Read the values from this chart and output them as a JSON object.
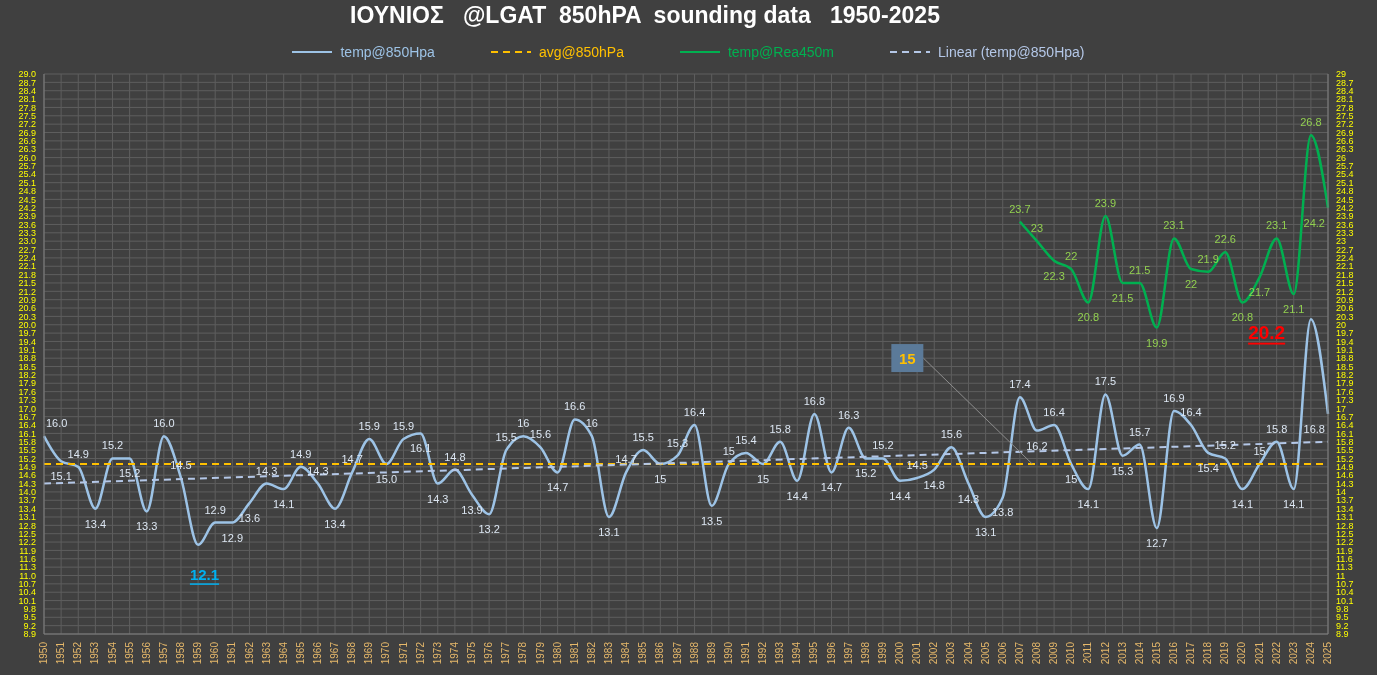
{
  "chart_data": {
    "type": "line",
    "title": "ΙΟΥΝΙΟΣ   @LGAT  850hPA  sounding data   1950-2025",
    "categories": [
      "1950",
      "1951",
      "1952",
      "1953",
      "1954",
      "1955",
      "1956",
      "1957",
      "1958",
      "1959",
      "1960",
      "1961",
      "1962",
      "1963",
      "1964",
      "1965",
      "1966",
      "1967",
      "1968",
      "1969",
      "1970",
      "1971",
      "1972",
      "1973",
      "1974",
      "1975",
      "1976",
      "1977",
      "1978",
      "1979",
      "1980",
      "1981",
      "1982",
      "1983",
      "1984",
      "1985",
      "1986",
      "1987",
      "1988",
      "1989",
      "1990",
      "1991",
      "1992",
      "1993",
      "1994",
      "1995",
      "1996",
      "1997",
      "1998",
      "1999",
      "2000",
      "2001",
      "2002",
      "2003",
      "2004",
      "2005",
      "2006",
      "2007",
      "2008",
      "2009",
      "2010",
      "2011",
      "2012",
      "2013",
      "2014",
      "2015",
      "2016",
      "2017",
      "2018",
      "2019",
      "2020",
      "2021",
      "2022",
      "2023",
      "2024",
      "2025"
    ],
    "series": [
      {
        "name": "temp@850Hpa",
        "color": "#9dc3e6",
        "line_style": "solid",
        "values": [
          16.0,
          15.1,
          14.9,
          13.4,
          15.2,
          15.2,
          13.3,
          16.0,
          14.5,
          12.1,
          12.9,
          12.9,
          13.6,
          14.3,
          14.1,
          14.9,
          14.3,
          13.4,
          14.7,
          15.9,
          15.0,
          15.9,
          16.1,
          14.3,
          14.8,
          13.9,
          13.2,
          15.5,
          16,
          15.6,
          14.7,
          16.6,
          16,
          13.1,
          14.7,
          15.5,
          15,
          15.3,
          16.4,
          13.5,
          15,
          15.4,
          15,
          15.8,
          14.4,
          16.8,
          14.7,
          16.3,
          15.2,
          15.2,
          14.4,
          14.5,
          14.8,
          15.6,
          14.3,
          13.1,
          13.8,
          17.4,
          16.2,
          16.4,
          15,
          14.1,
          17.5,
          15.3,
          15.7,
          12.7,
          16.9,
          16.4,
          15.4,
          15.2,
          14.1,
          15,
          15.8,
          14.1,
          20.2,
          16.8
        ],
        "value_labels": [
          "16.0",
          "15.1",
          "14.9",
          "13.4",
          "15.2",
          "15.2",
          "13.3",
          "16.0",
          "14.5",
          null,
          "12.9",
          "12.9",
          "13.6",
          "14.3",
          "14.1",
          "14.9",
          "14.3",
          "13.4",
          "14.7",
          "15.9",
          "15.0",
          "15.9",
          "16.1",
          "14.3",
          "14.8",
          "13.9",
          "13.2",
          "15.5",
          "16",
          "15.6",
          "14.7",
          "16.6",
          "16",
          "13.1",
          "14.7",
          "15.5",
          "15",
          "15.3",
          "16.4",
          "13.5",
          "15",
          "15.4",
          "15",
          "15.8",
          "14.4",
          "16.8",
          "14.7",
          "16.3",
          "15.2",
          "15.2",
          "14.4",
          "14.5",
          "14.8",
          "15.6",
          "14.3",
          "13.1",
          "13.8",
          "17.4",
          "16.2",
          "16.4",
          "15",
          "14.1",
          "17.5",
          "15.3",
          "15.7",
          "12.7",
          "16.9",
          "16.4",
          "15.4",
          "15.2",
          "14.1",
          "15",
          "15.8",
          "14.1",
          null,
          "16.8"
        ]
      },
      {
        "name": "avg@850hPa",
        "color": "#ffc000",
        "line_style": "dashed",
        "values": [
          15,
          15,
          15,
          15,
          15,
          15,
          15,
          15,
          15,
          15,
          15,
          15,
          15,
          15,
          15,
          15,
          15,
          15,
          15,
          15,
          15,
          15,
          15,
          15,
          15,
          15,
          15,
          15,
          15,
          15,
          15,
          15,
          15,
          15,
          15,
          15,
          15,
          15,
          15,
          15,
          15,
          15,
          15,
          15,
          15,
          15,
          15,
          15,
          15,
          15,
          15,
          15,
          15,
          15,
          15,
          15,
          15,
          15,
          15,
          15,
          15,
          15,
          15,
          15,
          15,
          15,
          15,
          15,
          15,
          15,
          15,
          15,
          15,
          15,
          15,
          15
        ]
      },
      {
        "name": "temp@Rea450m",
        "color": "#00b050",
        "line_style": "solid",
        "values": [
          null,
          null,
          null,
          null,
          null,
          null,
          null,
          null,
          null,
          null,
          null,
          null,
          null,
          null,
          null,
          null,
          null,
          null,
          null,
          null,
          null,
          null,
          null,
          null,
          null,
          null,
          null,
          null,
          null,
          null,
          null,
          null,
          null,
          null,
          null,
          null,
          null,
          null,
          null,
          null,
          null,
          null,
          null,
          null,
          null,
          null,
          null,
          null,
          null,
          null,
          null,
          null,
          null,
          null,
          null,
          null,
          null,
          23.7,
          23,
          22.3,
          22,
          20.8,
          23.9,
          21.5,
          21.5,
          19.9,
          23.1,
          22,
          21.9,
          22.6,
          20.8,
          21.7,
          23.1,
          21.1,
          26.8,
          24.2
        ],
        "value_labels": [
          null,
          null,
          null,
          null,
          null,
          null,
          null,
          null,
          null,
          null,
          null,
          null,
          null,
          null,
          null,
          null,
          null,
          null,
          null,
          null,
          null,
          null,
          null,
          null,
          null,
          null,
          null,
          null,
          null,
          null,
          null,
          null,
          null,
          null,
          null,
          null,
          null,
          null,
          null,
          null,
          null,
          null,
          null,
          null,
          null,
          null,
          null,
          null,
          null,
          null,
          null,
          null,
          null,
          null,
          null,
          null,
          null,
          "23.7",
          "23",
          "22.3",
          "22",
          "20.8",
          "23.9",
          "21.5",
          "21.5",
          "19.9",
          "23.1",
          "22",
          "21.9",
          "22.6",
          "20.8",
          "21.7",
          "23.1",
          "21.1",
          "26.8",
          "24.2"
        ]
      },
      {
        "name": "Linear (temp@850Hpa)",
        "color": "#b4c7e7",
        "line_style": "dashed",
        "values": [
          14.3,
          null,
          null,
          null,
          null,
          null,
          null,
          null,
          null,
          null,
          null,
          null,
          null,
          null,
          null,
          null,
          null,
          null,
          null,
          null,
          null,
          null,
          null,
          null,
          null,
          null,
          null,
          null,
          null,
          null,
          null,
          null,
          null,
          null,
          null,
          null,
          null,
          null,
          null,
          null,
          null,
          null,
          null,
          null,
          null,
          null,
          null,
          null,
          null,
          null,
          null,
          null,
          null,
          null,
          null,
          null,
          null,
          null,
          null,
          null,
          null,
          null,
          null,
          null,
          null,
          null,
          null,
          null,
          null,
          null,
          null,
          null,
          null,
          null,
          null,
          15.8
        ]
      }
    ],
    "annotations": [
      {
        "text": "12.1",
        "x": "1959",
        "y": 12.1
      },
      {
        "text": "20.2",
        "x": "2024",
        "y": 20.2
      },
      {
        "text": "15",
        "x": "2008",
        "y": 15
      }
    ],
    "ylim": [
      8.9,
      29
    ],
    "yticks": [
      8.9,
      9.2,
      9.5,
      9.8,
      10.1,
      10.4,
      10.7,
      {
        "value": 11,
        "label": "11.0"
      },
      11.3,
      11.6,
      11.9,
      12.2,
      12.5,
      12.8,
      13.1,
      13.4,
      13.7,
      {
        "value": 14,
        "label": "14.0"
      },
      14.3,
      14.6,
      14.9,
      15.2,
      15.5,
      15.8,
      16.1,
      16.4,
      16.7,
      {
        "value": 17,
        "label": "17.0"
      },
      17.3,
      17.6,
      17.9,
      18.2,
      18.5,
      18.8,
      19.1,
      19.4,
      19.7,
      {
        "value": 20,
        "label": "20.0"
      },
      20.3,
      20.6,
      20.9,
      21.2,
      21.5,
      21.8,
      22.1,
      22.4,
      22.7,
      {
        "value": 23,
        "label": "23.0"
      },
      23.3,
      23.6,
      23.9,
      24.2,
      24.5,
      24.8,
      25.1,
      25.4,
      25.7,
      {
        "value": 26,
        "label": "26.0"
      },
      26.3,
      26.6,
      26.9,
      27.2,
      27.5,
      27.8,
      28.1,
      28.4,
      28.7,
      {
        "value": 29,
        "label": "29.0"
      }
    ],
    "y2lim": [
      8.9,
      29
    ],
    "y2ticks": [
      8.9,
      9.2,
      9.5,
      9.8,
      10.1,
      10.4,
      10.7,
      11,
      11.3,
      11.6,
      11.9,
      12.2,
      12.5,
      12.8,
      13.1,
      13.4,
      13.7,
      14,
      14.3,
      14.6,
      14.9,
      15.2,
      15.5,
      15.8,
      16.1,
      16.4,
      16.7,
      17,
      17.3,
      17.6,
      17.9,
      18.2,
      18.5,
      18.8,
      19.1,
      19.4,
      19.7,
      20,
      20.3,
      20.6,
      20.9,
      21.2,
      21.5,
      21.8,
      22.1,
      22.4,
      22.7,
      23,
      23.3,
      23.6,
      23.9,
      24.2,
      24.5,
      24.8,
      25.1,
      25.4,
      25.7,
      26,
      26.3,
      26.6,
      26.9,
      27.2,
      27.5,
      27.8,
      28.1,
      28.4,
      28.7,
      29
    ],
    "grid": true,
    "legend": "top",
    "marker": "none"
  }
}
